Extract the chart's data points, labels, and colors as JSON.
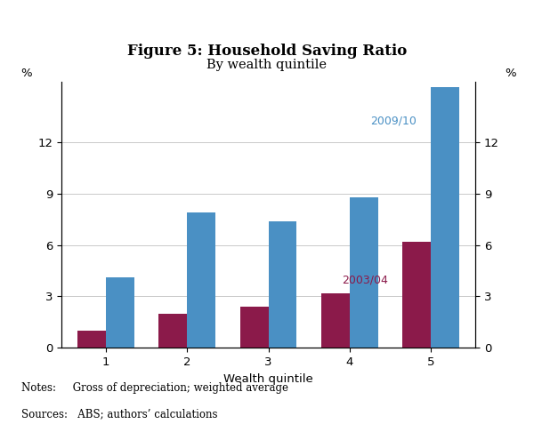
{
  "title": "Figure 5: Household Saving Ratio",
  "subtitle": "By wealth quintile",
  "xlabel": "Wealth quintile",
  "ylabel_left": "%",
  "ylabel_right": "%",
  "categories": [
    1,
    2,
    3,
    4,
    5
  ],
  "series_2003": [
    1.0,
    2.0,
    2.4,
    3.2,
    6.2
  ],
  "series_2009": [
    4.1,
    7.9,
    7.4,
    8.8,
    15.2
  ],
  "color_2003": "#8B1A4A",
  "color_2009": "#4A90C4",
  "label_2003": "2003/04",
  "label_2009": "2009/10",
  "ylim": [
    0,
    15.5
  ],
  "yticks": [
    0,
    3,
    6,
    9,
    12
  ],
  "bar_width": 0.35,
  "notes_line1": "Notes:     Gross of depreciation; weighted average",
  "notes_line2": "Sources:   ABS; authors’ calculations",
  "grid_color": "#c0c0c0",
  "title_fontsize": 12,
  "subtitle_fontsize": 10.5,
  "axis_fontsize": 9.5,
  "label_fontsize": 9.5,
  "annotation_fontsize": 9,
  "notes_fontsize": 8.5
}
